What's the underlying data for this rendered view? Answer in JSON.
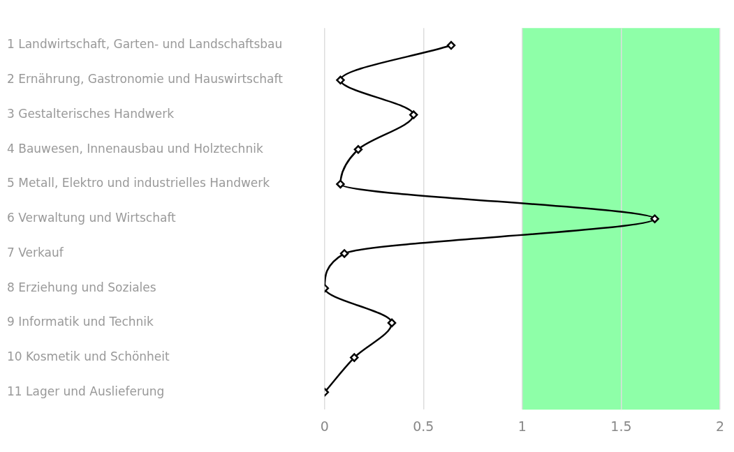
{
  "chart_data": {
    "type": "line",
    "orientation": "horizontal",
    "categories": [
      "1 Landwirtschaft, Garten- und Landschaftsbau",
      "2 Ernährung, Gastronomie und Hauswirtschaft",
      "3 Gestalterisches Handwerk",
      "4 Bauwesen, Innenausbau und Holztechnik",
      "5 Metall, Elektro und industrielles Handwerk",
      "6 Verwaltung und Wirtschaft",
      "7 Verkauf",
      "8 Erziehung und Soziales",
      "9 Informatik und Technik",
      "10 Kosmetik und Schönheit",
      "11 Lager und Auslieferung"
    ],
    "series": [
      {
        "color": "#000000",
        "values": [
          0.64,
          0.08,
          0.45,
          0.17,
          0.08,
          1.67,
          0.1,
          0,
          0.34,
          0.15,
          0
        ]
      }
    ],
    "xlim": [
      0,
      2
    ],
    "xticks": [
      0,
      0.5,
      1,
      1.5,
      2
    ],
    "bands": [
      {
        "axis": "x",
        "from": 1,
        "to": 2,
        "color": "#8effa8"
      }
    ],
    "grid": "x",
    "legend": false,
    "marker": "diamond",
    "line_style": "solid"
  }
}
